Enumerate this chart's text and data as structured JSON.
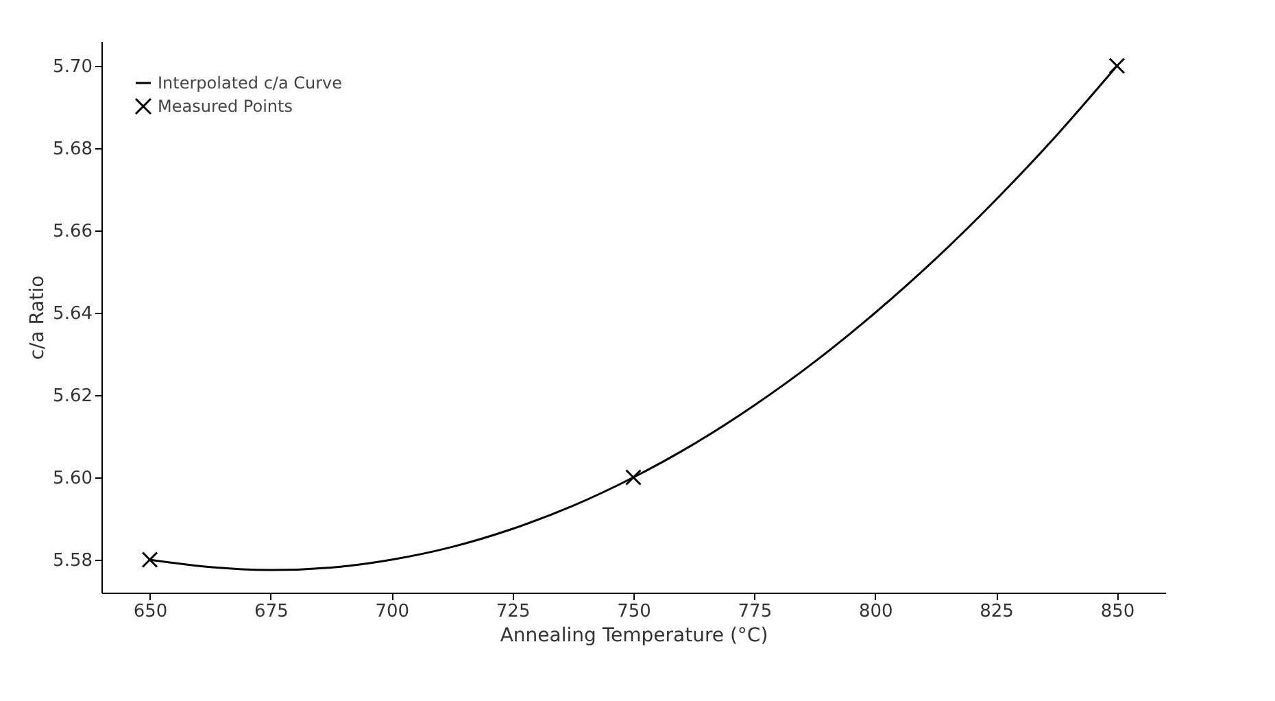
{
  "chart_data": {
    "type": "line",
    "xlabel": "Annealing Temperature (°C)",
    "ylabel": "c/a Ratio",
    "series": [
      {
        "name": "Interpolated c/a Curve",
        "color": "#000000",
        "marker": "none",
        "line_style": "solid",
        "x": [
          650,
          662.5,
          675,
          687.5,
          700,
          712.5,
          725,
          737.5,
          750,
          762.5,
          775,
          787.5,
          800,
          812.5,
          825,
          837.5,
          850
        ],
        "values": [
          5.58,
          5.5782,
          5.5775,
          5.5781,
          5.58,
          5.5831,
          5.5875,
          5.5931,
          5.6,
          5.6081,
          5.6175,
          5.6281,
          5.64,
          5.6531,
          5.6675,
          5.6831,
          5.7
        ]
      },
      {
        "name": "Measured Points",
        "type": "scatter",
        "color": "#000000",
        "marker": "cross",
        "x": [
          650,
          750,
          850
        ],
        "values": [
          5.58,
          5.6,
          5.7
        ]
      }
    ],
    "xlim": [
      640,
      860
    ],
    "xticks": [
      650,
      675,
      700,
      725,
      750,
      775,
      800,
      825,
      850
    ],
    "ylim": [
      5.572,
      5.706
    ],
    "yticks": [
      5.58,
      {
        "value": 5.6,
        "label": "5.60"
      },
      5.62,
      5.64,
      5.66,
      5.68,
      {
        "value": 5.7,
        "label": "5.70"
      }
    ],
    "grid": false,
    "legend": "top left"
  }
}
